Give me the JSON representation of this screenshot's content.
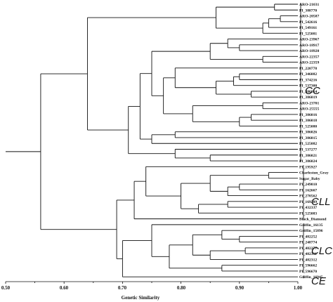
{
  "tree_text": {
    "axis_title": "Genetic Similarity",
    "ticks": [
      "0.50",
      "0.60",
      "0.70",
      "0.80",
      "0.90",
      "1.00"
    ],
    "groups": [
      {
        "label": "CC"
      },
      {
        "label": "CLL"
      },
      {
        "label": "CLC"
      },
      {
        "label": "CE"
      }
    ],
    "leaves": [
      "ARO-21031",
      "PI_388770",
      "ARO-20587",
      "PI_542616",
      "PI_549161",
      "PI_525081",
      "ARO-23967",
      "ARO-18917",
      "ARO-18920",
      "ARO-22357",
      "ARO-22359",
      "PI_220778",
      "PI_346082",
      "PI_374216",
      "PI_537300",
      "PI_386014",
      "PI_386019",
      "ARO-23701",
      "ARO-25555",
      "PI_386016",
      "PI_386018",
      "PI_525080",
      "PI_386026",
      "PI_386015",
      "PI_525082",
      "PI_537277",
      "PI_386021",
      "PI_386024",
      "PI_195927",
      "Charleston_Gray",
      "Sugar_Baby",
      "PI_249010",
      "PI_162667",
      "PI_270562",
      "PI_169289",
      "PI_432337",
      "PI_525083",
      "Black_Diamond",
      "Griffin_16135",
      "Griffin_15896",
      "PI_482252",
      "PI_248774",
      "PI_482277",
      "PI_482311",
      "PI_482312",
      "PI_596662",
      "PI_596670",
      "Griffin_16945"
    ]
  },
  "chart_data": {
    "type": "dendrogram",
    "xlabel": "Genetic Similarity",
    "xlim": [
      0.5,
      1.0
    ],
    "ticks": [
      0.5,
      0.6,
      0.7,
      0.8,
      0.9,
      1.0
    ],
    "groups": [
      {
        "label": "CC",
        "leaves": [
          "ARO-21031",
          "PI_386024"
        ]
      },
      {
        "label": "CLL",
        "leaves": [
          "PI_195927",
          "Black_Diamond"
        ]
      },
      {
        "label": "CLC",
        "leaves": [
          "Griffin_16135",
          "PI_596670"
        ]
      },
      {
        "label": "CE",
        "leaves": [
          "Griffin_16945",
          "Griffin_16945"
        ]
      }
    ],
    "merges": [
      {
        "sim": 0.96,
        "children": [
          0,
          1
        ]
      },
      {
        "sim": 0.97,
        "children": [
          2,
          3
        ]
      },
      {
        "sim": 0.95,
        "children": [
          "m1",
          4
        ]
      },
      {
        "sim": 0.94,
        "children": [
          "m2",
          5
        ]
      },
      {
        "sim": 0.86,
        "children": [
          "m0",
          "m3"
        ]
      },
      {
        "sim": 0.9,
        "children": [
          7,
          8
        ]
      },
      {
        "sim": 0.88,
        "children": [
          "m5",
          6
        ]
      },
      {
        "sim": 0.94,
        "children": [
          9,
          10
        ]
      },
      {
        "sim": 0.85,
        "children": [
          "m6",
          "m7"
        ]
      },
      {
        "sim": 0.9,
        "children": [
          12,
          13
        ]
      },
      {
        "sim": 0.89,
        "children": [
          "m9",
          14
        ]
      },
      {
        "sim": 0.92,
        "children": [
          15,
          16
        ]
      },
      {
        "sim": 0.86,
        "children": [
          "m10",
          "m11"
        ]
      },
      {
        "sim": 0.79,
        "children": [
          11,
          "m12"
        ]
      },
      {
        "sim": 0.94,
        "children": [
          17,
          18
        ]
      },
      {
        "sim": 0.92,
        "children": [
          19,
          20
        ]
      },
      {
        "sim": 0.9,
        "children": [
          "m15",
          21
        ]
      },
      {
        "sim": 0.82,
        "children": [
          "m14",
          "m16"
        ]
      },
      {
        "sim": 0.77,
        "children": [
          "m13",
          "m17"
        ]
      },
      {
        "sim": 0.75,
        "children": [
          "m8",
          "m18"
        ]
      },
      {
        "sim": 0.79,
        "children": [
          22,
          23
        ]
      },
      {
        "sim": 0.75,
        "children": [
          "m20",
          24
        ]
      },
      {
        "sim": 0.73,
        "children": [
          "m19",
          "m21"
        ]
      },
      {
        "sim": 0.85,
        "children": [
          26,
          27
        ]
      },
      {
        "sim": 0.79,
        "children": [
          25,
          "m23"
        ]
      },
      {
        "sim": 0.71,
        "children": [
          "m22",
          "m24"
        ]
      },
      {
        "sim": 0.64,
        "children": [
          "m4",
          "m25"
        ]
      },
      {
        "sim": 0.95,
        "children": [
          29,
          30
        ]
      },
      {
        "sim": 0.9,
        "children": [
          31,
          32
        ]
      },
      {
        "sim": 0.88,
        "children": [
          "m28",
          33
        ]
      },
      {
        "sim": 0.85,
        "children": [
          "m27",
          "m29"
        ]
      },
      {
        "sim": 0.88,
        "children": [
          34,
          35
        ]
      },
      {
        "sim": 0.83,
        "children": [
          "m31",
          36
        ]
      },
      {
        "sim": 0.8,
        "children": [
          "m30",
          "m32"
        ]
      },
      {
        "sim": 0.74,
        "children": [
          28,
          "m33"
        ]
      },
      {
        "sim": 0.72,
        "children": [
          "m34",
          37
        ]
      },
      {
        "sim": 0.9,
        "children": [
          40,
          41
        ]
      },
      {
        "sim": 0.87,
        "children": [
          39,
          "m36"
        ]
      },
      {
        "sim": 0.91,
        "children": [
          42,
          43
        ]
      },
      {
        "sim": 0.85,
        "children": [
          "m38",
          44
        ]
      },
      {
        "sim": 0.82,
        "children": [
          "m37",
          "m39"
        ]
      },
      {
        "sim": 0.87,
        "children": [
          45,
          46
        ]
      },
      {
        "sim": 0.78,
        "children": [
          "m40",
          "m41"
        ]
      },
      {
        "sim": 0.75,
        "children": [
          38,
          "m42"
        ]
      },
      {
        "sim": 0.7,
        "children": [
          "m43",
          47
        ]
      },
      {
        "sim": 0.69,
        "children": [
          "m35",
          "m44"
        ]
      },
      {
        "sim": 0.56,
        "children": [
          "m26",
          "m45"
        ]
      },
      {
        "sim": 0.5,
        "children": [
          "m46"
        ]
      }
    ]
  }
}
